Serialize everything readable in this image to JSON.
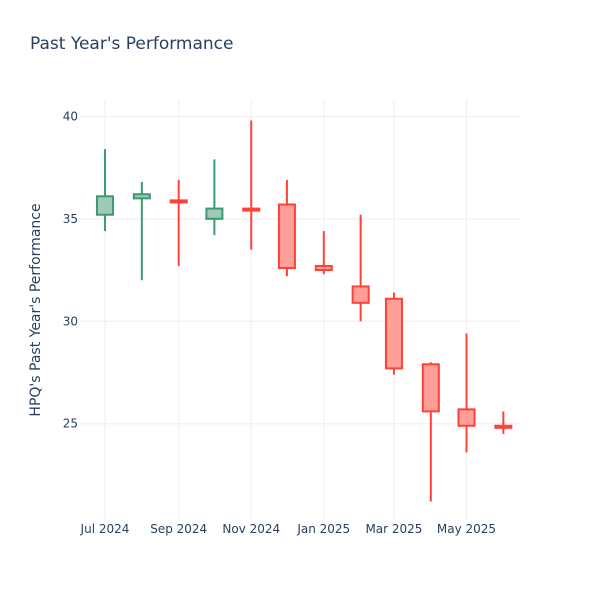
{
  "chart_data": {
    "type": "candlestick",
    "title": "Past Year's Performance",
    "xlabel": "",
    "ylabel": "HPQ's Past Year's Performance",
    "ylim": [
      20.3,
      40.8
    ],
    "y_ticks": [
      25,
      30,
      35,
      40
    ],
    "x_ticks": [
      {
        "label": "Jul 2024",
        "date": "2024-07-01"
      },
      {
        "label": "Sep 2024",
        "date": "2024-09-01"
      },
      {
        "label": "Nov 2024",
        "date": "2024-11-01"
      },
      {
        "label": "Jan 2025",
        "date": "2025-01-01"
      },
      {
        "label": "Mar 2025",
        "date": "2025-03-01"
      },
      {
        "label": "May 2025",
        "date": "2025-05-01"
      }
    ],
    "xlim": [
      "2024-06-10",
      "2025-06-15"
    ],
    "colors": {
      "increasing": "#3d9970",
      "increasing_fill": "#9ecbb7",
      "decreasing": "#ff4136",
      "decreasing_fill": "#ff9f9a"
    },
    "candles": [
      {
        "date": "2024-07-01",
        "open": 35.2,
        "high": 38.4,
        "low": 34.4,
        "close": 36.1
      },
      {
        "date": "2024-08-01",
        "open": 36.0,
        "high": 36.8,
        "low": 32.0,
        "close": 36.2
      },
      {
        "date": "2024-09-01",
        "open": 35.9,
        "high": 36.9,
        "low": 32.7,
        "close": 35.8
      },
      {
        "date": "2024-10-01",
        "open": 35.0,
        "high": 37.9,
        "low": 34.2,
        "close": 35.5
      },
      {
        "date": "2024-11-01",
        "open": 35.5,
        "high": 39.8,
        "low": 33.5,
        "close": 35.4
      },
      {
        "date": "2024-12-01",
        "open": 35.7,
        "high": 36.9,
        "low": 32.2,
        "close": 32.6
      },
      {
        "date": "2025-01-01",
        "open": 32.7,
        "high": 34.4,
        "low": 32.3,
        "close": 32.5
      },
      {
        "date": "2025-02-01",
        "open": 31.7,
        "high": 35.2,
        "low": 30.0,
        "close": 30.9
      },
      {
        "date": "2025-03-01",
        "open": 31.1,
        "high": 31.4,
        "low": 27.4,
        "close": 27.7
      },
      {
        "date": "2025-04-01",
        "open": 27.9,
        "high": 28.0,
        "low": 21.2,
        "close": 25.6
      },
      {
        "date": "2025-05-01",
        "open": 25.7,
        "high": 29.4,
        "low": 23.6,
        "close": 24.9
      },
      {
        "date": "2025-06-01",
        "open": 24.9,
        "high": 25.6,
        "low": 24.5,
        "close": 24.8
      }
    ]
  }
}
